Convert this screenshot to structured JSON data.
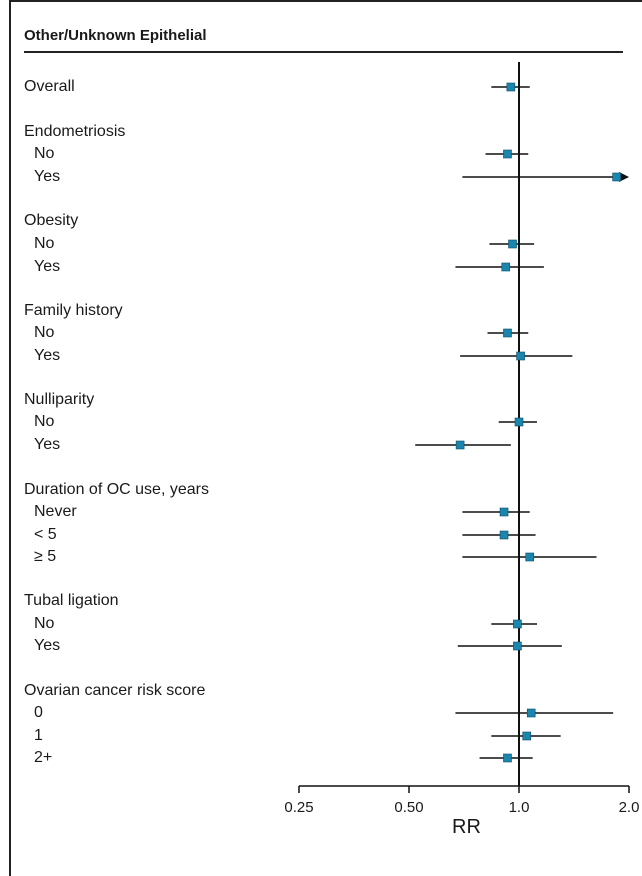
{
  "chart_data": {
    "type": "forest",
    "title": "Other/Unknown Epithelial",
    "xlabel": "RR",
    "xscale": "log2",
    "xlim": [
      0.25,
      2.0
    ],
    "xticks": [
      0.25,
      0.5,
      1.0,
      2.0
    ],
    "xtick_labels": [
      "0.25",
      "0.50",
      "1.0",
      "2.0"
    ],
    "reference_line": 1.0,
    "marker_color": "#1a86ad",
    "rows": [
      {
        "label": "Overall",
        "kind": "row",
        "indent": false,
        "rr": 0.95,
        "lo": 0.84,
        "hi": 1.07
      },
      {
        "label": "Endometriosis",
        "kind": "header"
      },
      {
        "label": "No",
        "kind": "row",
        "indent": true,
        "rr": 0.93,
        "lo": 0.81,
        "hi": 1.06
      },
      {
        "label": "Yes",
        "kind": "row",
        "indent": true,
        "rr": 1.85,
        "lo": 0.7,
        "hi": 2.0,
        "arrow": true
      },
      {
        "label": "Obesity",
        "kind": "header"
      },
      {
        "label": "No",
        "kind": "row",
        "indent": true,
        "rr": 0.96,
        "lo": 0.83,
        "hi": 1.1
      },
      {
        "label": "Yes",
        "kind": "row",
        "indent": true,
        "rr": 0.92,
        "lo": 0.67,
        "hi": 1.17
      },
      {
        "label": "Family history",
        "kind": "header"
      },
      {
        "label": "No",
        "kind": "row",
        "indent": true,
        "rr": 0.93,
        "lo": 0.82,
        "hi": 1.06
      },
      {
        "label": "Yes",
        "kind": "row",
        "indent": true,
        "rr": 1.01,
        "lo": 0.69,
        "hi": 1.4
      },
      {
        "label": "Nulliparity",
        "kind": "header"
      },
      {
        "label": "No",
        "kind": "row",
        "indent": true,
        "rr": 1.0,
        "lo": 0.88,
        "hi": 1.12
      },
      {
        "label": "Yes",
        "kind": "row",
        "indent": true,
        "rr": 0.69,
        "lo": 0.52,
        "hi": 0.95
      },
      {
        "label": "Duration of OC use, years",
        "kind": "header"
      },
      {
        "label": "Never",
        "kind": "row",
        "indent": true,
        "rr": 0.91,
        "lo": 0.7,
        "hi": 1.07
      },
      {
        "label": "< 5",
        "kind": "row",
        "indent": true,
        "rr": 0.91,
        "lo": 0.7,
        "hi": 1.11
      },
      {
        "label": "≥ 5",
        "kind": "row",
        "indent": true,
        "rr": 1.07,
        "lo": 0.7,
        "hi": 1.63
      },
      {
        "label": "Tubal ligation",
        "kind": "header"
      },
      {
        "label": "No",
        "kind": "row",
        "indent": true,
        "rr": 0.99,
        "lo": 0.84,
        "hi": 1.12
      },
      {
        "label": "Yes",
        "kind": "row",
        "indent": true,
        "rr": 0.99,
        "lo": 0.68,
        "hi": 1.31
      },
      {
        "label": "Ovarian cancer risk score",
        "kind": "header"
      },
      {
        "label": "0",
        "kind": "row",
        "indent": true,
        "rr": 1.08,
        "lo": 0.67,
        "hi": 1.81
      },
      {
        "label": "1",
        "kind": "row",
        "indent": true,
        "rr": 1.05,
        "lo": 0.84,
        "hi": 1.3
      },
      {
        "label": "2+",
        "kind": "row",
        "indent": true,
        "rr": 0.93,
        "lo": 0.78,
        "hi": 1.09
      }
    ]
  }
}
